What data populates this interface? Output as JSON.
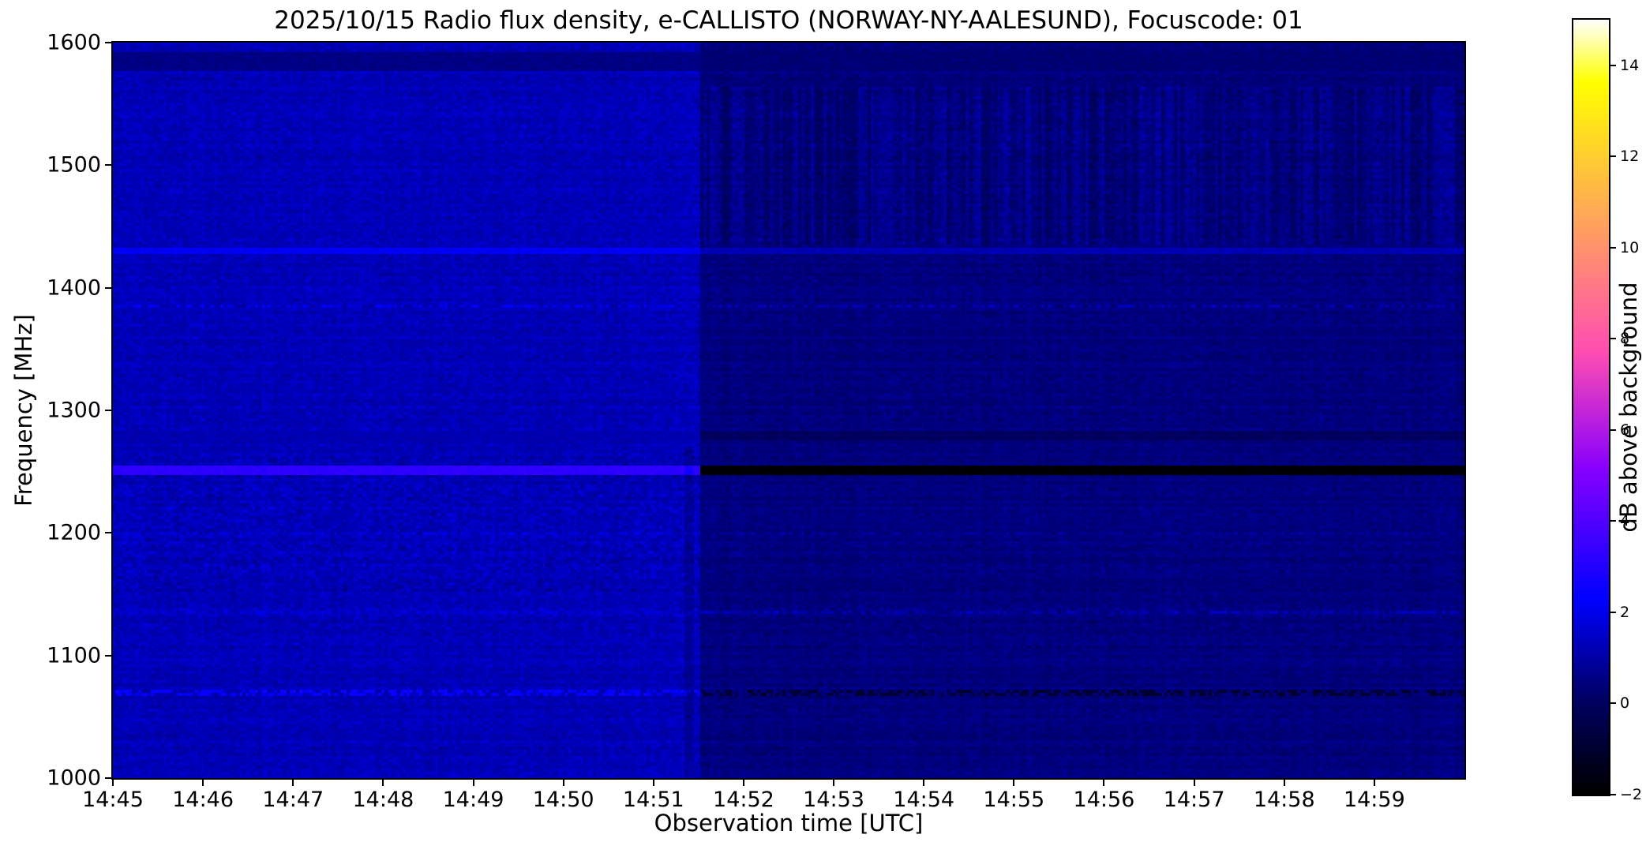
{
  "chart_data": {
    "type": "heatmap",
    "title": "2025/10/15  Radio flux density, e-CALLISTO (NORWAY-NY-AALESUND), Focuscode: 01",
    "xlabel": "Observation time [UTC]",
    "ylabel": "Frequency [MHz]",
    "x_axis": {
      "start": "14:45",
      "end": "15:00",
      "span_minutes": 15,
      "tick_labels": [
        "14:45",
        "14:46",
        "14:47",
        "14:48",
        "14:49",
        "14:50",
        "14:51",
        "14:52",
        "14:53",
        "14:54",
        "14:55",
        "14:56",
        "14:57",
        "14:58",
        "14:59"
      ]
    },
    "y_axis": {
      "min_mhz": 1000,
      "max_mhz": 1600,
      "tick_labels": [
        1600,
        1500,
        1400,
        1300,
        1200,
        1100,
        1000
      ]
    },
    "colorbar": {
      "label": "dB above background",
      "vmin": -2,
      "vmax": 15,
      "tick_values": [
        14,
        12,
        10,
        8,
        6,
        4,
        2,
        0,
        -2
      ],
      "colormap": "gnuplot2",
      "colormap_stops": [
        [
          0.0,
          "#000000"
        ],
        [
          0.125,
          "#000066"
        ],
        [
          0.25,
          "#0000ff"
        ],
        [
          0.42,
          "#8700ff"
        ],
        [
          0.5,
          "#c729d6"
        ],
        [
          0.57,
          "#ff4db3"
        ],
        [
          0.7,
          "#ff8f70"
        ],
        [
          0.8,
          "#ffc23d"
        ],
        [
          0.92,
          "#ffff00"
        ],
        [
          1.0,
          "#ffffff"
        ]
      ]
    },
    "background": {
      "split_minutes": 6.53,
      "left_base_db": 1.25,
      "right_base_db": 0.45,
      "left_noise_db": 0.28,
      "right_noise_db": 0.2,
      "left_blotch_range_mhz": [
        1150,
        1265
      ],
      "left_blotch_db": 0.28,
      "right_stripe_range_mhz": [
        1435,
        1565
      ],
      "right_stripe_db": 0.35
    },
    "interference_bands": [
      {
        "freq_mhz": 1585,
        "width_mhz": 17,
        "left_db": 0.55,
        "right_db": 0.3,
        "speckle": false
      },
      {
        "freq_mhz": 1430,
        "width_mhz": 7,
        "left_db": 2.1,
        "right_db": 1.2,
        "speckle": false
      },
      {
        "freq_mhz": 1385,
        "width_mhz": 5,
        "left_db": 1.9,
        "right_db": 1.1,
        "speckle": true
      },
      {
        "freq_mhz": 1280,
        "width_mhz": 8,
        "left_db": 1.15,
        "right_db": 0.0,
        "speckle": false
      },
      {
        "freq_mhz": 1250,
        "width_mhz": 8,
        "left_db": 3.2,
        "right_db": -1.9,
        "speckle": false
      },
      {
        "freq_mhz": 1200,
        "width_mhz": 4,
        "left_db": 1.7,
        "right_db": 0.8,
        "speckle": true
      },
      {
        "freq_mhz": 1135,
        "width_mhz": 4,
        "left_db": 1.8,
        "right_db": 1.2,
        "speckle": true
      },
      {
        "freq_mhz": 1070,
        "width_mhz": 5,
        "left_db": 2.3,
        "right_db": -0.9,
        "speckle": true
      }
    ],
    "vertical_marks": [
      {
        "time_minutes": 6.4,
        "width_minutes": 0.12,
        "freq_range_mhz": [
          1000,
          1270
        ],
        "delta_db": -0.5
      }
    ]
  }
}
